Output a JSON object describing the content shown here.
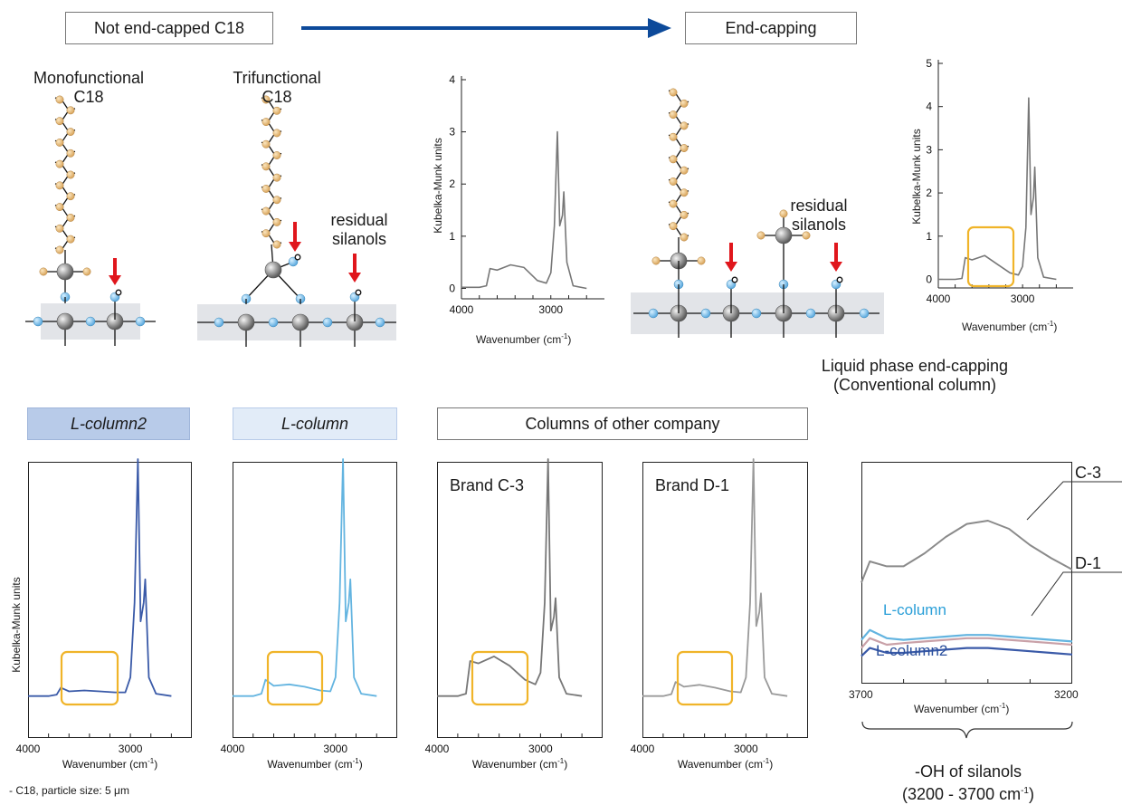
{
  "header": {
    "left_box": "Not end-capped C18",
    "right_box": "End-capping"
  },
  "molecules": {
    "mono_label_line1": "Monofunctional",
    "mono_label_line2": "C18",
    "tri_label_line1": "Trifunctional",
    "tri_label_line2": "C18",
    "residual_line1": "residual",
    "residual_line2": "silanols",
    "residual2_line1": "residual",
    "residual2_line2": "silanols"
  },
  "top_spectra": {
    "ylabel": "Kubelka-Munk units",
    "xlabel": "Wavenumber (cm",
    "xlabel_sup": "-1",
    "xlabel_close": ")",
    "liquid_line1": "Liquid phase end-capping",
    "liquid_line2": "(Conventional column)"
  },
  "bottom_headers": {
    "lc2": "L-column2",
    "lc": "L-column",
    "other": "Columns of other company"
  },
  "bottom_spectra": {
    "ylabel": "Kubelka-Munk units",
    "brand_c3": "Brand C-3",
    "brand_d1": "Brand D-1"
  },
  "zoom": {
    "c3": "C-3",
    "d1": "D-1",
    "lcolumn": "L-column",
    "lcolumn2": "L-column2",
    "tick_left": "3700",
    "tick_right": "3200",
    "xlabel": "Wavenumber (cm",
    "silanols_line1": "-OH of silanols",
    "silanols_line2": "(3200 - 3700 cm",
    "silanols_sup": "-1",
    "silanols_close": ")"
  },
  "footnote": "- C18, particle size: 5 μm",
  "colors": {
    "arrow_blue": "#0d4a9a",
    "red_arrow": "#e0161c",
    "chain_atom": "#d9a55c",
    "silicon_atom": "#8c8c8c",
    "oxygen_atom": "#5aa9de",
    "highlight_box": "#f0b429",
    "lc2_line": "#3a5aa8",
    "lc_line": "#63b4e0",
    "gray_line": "#777777"
  },
  "chart_data": [
    {
      "type": "line",
      "xlabel": "Wavenumber (cm-1)",
      "ylabel": "Kubelka-Munk units",
      "xlim": [
        4000,
        2400
      ],
      "ylim": [
        -0.2,
        4
      ],
      "x_ticks": [
        "4000",
        "3000"
      ],
      "y_ticks": [
        "0",
        "1",
        "2",
        "3",
        "4"
      ],
      "series": [
        {
          "x": [
            4000,
            3800,
            3720,
            3680,
            3600,
            3450,
            3300,
            3150,
            3050,
            3000,
            2960,
            2927,
            2900,
            2870,
            2855,
            2820,
            2750,
            2600
          ],
          "y": [
            0.02,
            0.02,
            0.05,
            0.38,
            0.35,
            0.45,
            0.4,
            0.15,
            0.1,
            0.3,
            1.2,
            3.0,
            1.2,
            1.4,
            1.85,
            0.5,
            0.05,
            0.0
          ]
        }
      ]
    },
    {
      "type": "line",
      "xlabel": "Wavenumber (cm-1)",
      "ylabel": "Kubelka-Munk units",
      "xlim": [
        4000,
        2400
      ],
      "ylim": [
        -0.2,
        5
      ],
      "x_ticks": [
        "4000",
        "3000"
      ],
      "y_ticks": [
        "0",
        "1",
        "2",
        "3",
        "4",
        "5"
      ],
      "series": [
        {
          "x": [
            4000,
            3800,
            3720,
            3680,
            3600,
            3450,
            3300,
            3150,
            3050,
            3000,
            2960,
            2927,
            2900,
            2870,
            2855,
            2820,
            2750,
            2600
          ],
          "y": [
            0.0,
            0.0,
            0.02,
            0.5,
            0.45,
            0.55,
            0.35,
            0.15,
            0.1,
            0.3,
            1.2,
            4.2,
            1.5,
            1.9,
            2.6,
            0.5,
            0.05,
            0.0
          ]
        }
      ]
    },
    {
      "type": "line",
      "name": "L-column2",
      "xlabel": "Wavenumber (cm-1)",
      "ylabel": "Kubelka-Munk units",
      "xlim": [
        4000,
        2400
      ],
      "ylim": [
        -0.2,
        5
      ],
      "x_ticks": [
        "4000",
        "3000"
      ],
      "series": [
        {
          "x": [
            4000,
            3800,
            3720,
            3680,
            3600,
            3450,
            3300,
            3150,
            3050,
            3000,
            2960,
            2927,
            2900,
            2870,
            2855,
            2820,
            2750,
            2600
          ],
          "y": [
            0.0,
            0.0,
            0.03,
            0.18,
            0.1,
            0.12,
            0.1,
            0.08,
            0.08,
            0.4,
            2.0,
            6.0,
            1.6,
            2.0,
            2.5,
            0.4,
            0.05,
            0.0
          ]
        }
      ]
    },
    {
      "type": "line",
      "name": "L-column",
      "xlabel": "Wavenumber (cm-1)",
      "ylabel": "Kubelka-Munk units",
      "xlim": [
        4000,
        2400
      ],
      "ylim": [
        -0.2,
        5
      ],
      "x_ticks": [
        "4000",
        "3000"
      ],
      "series": [
        {
          "x": [
            4000,
            3800,
            3720,
            3680,
            3600,
            3450,
            3300,
            3150,
            3050,
            3000,
            2960,
            2927,
            2900,
            2870,
            2855,
            2820,
            2750,
            2600
          ],
          "y": [
            0.0,
            0.0,
            0.05,
            0.35,
            0.22,
            0.25,
            0.2,
            0.12,
            0.1,
            0.4,
            2.0,
            6.0,
            1.6,
            2.0,
            2.5,
            0.4,
            0.05,
            0.0
          ]
        }
      ]
    },
    {
      "type": "line",
      "name": "Brand C-3",
      "xlabel": "Wavenumber (cm-1)",
      "ylabel": "Kubelka-Munk units",
      "xlim": [
        4000,
        2400
      ],
      "ylim": [
        -0.2,
        5
      ],
      "x_ticks": [
        "4000",
        "3000"
      ],
      "series": [
        {
          "x": [
            4000,
            3800,
            3720,
            3680,
            3600,
            3450,
            3300,
            3150,
            3050,
            3000,
            2960,
            2927,
            2900,
            2870,
            2855,
            2820,
            2750,
            2600
          ],
          "y": [
            0.0,
            0.0,
            0.05,
            0.75,
            0.7,
            0.85,
            0.65,
            0.35,
            0.25,
            0.5,
            2.0,
            6.0,
            1.4,
            1.7,
            2.1,
            0.4,
            0.05,
            0.0
          ]
        }
      ]
    },
    {
      "type": "line",
      "name": "Brand D-1",
      "xlabel": "Wavenumber (cm-1)",
      "ylabel": "Kubelka-Munk units",
      "xlim": [
        4000,
        2400
      ],
      "ylim": [
        -0.2,
        5
      ],
      "x_ticks": [
        "4000",
        "3000"
      ],
      "series": [
        {
          "x": [
            4000,
            3800,
            3720,
            3680,
            3600,
            3450,
            3300,
            3150,
            3050,
            3000,
            2960,
            2927,
            2900,
            2870,
            2855,
            2820,
            2750,
            2600
          ],
          "y": [
            0.0,
            0.0,
            0.04,
            0.3,
            0.2,
            0.24,
            0.18,
            0.1,
            0.08,
            0.4,
            2.0,
            6.0,
            1.5,
            1.8,
            2.2,
            0.4,
            0.05,
            0.0
          ]
        }
      ]
    },
    {
      "type": "line",
      "xlabel": "Wavenumber (cm-1)",
      "xlim": [
        3700,
        3200
      ],
      "x_ticks": [
        "3700",
        "3200"
      ],
      "series": [
        {
          "name": "C-3",
          "x": [
            3700,
            3680,
            3640,
            3600,
            3550,
            3500,
            3450,
            3400,
            3350,
            3300,
            3250,
            3200
          ],
          "y": [
            0.62,
            0.75,
            0.72,
            0.72,
            0.8,
            0.9,
            0.98,
            1.0,
            0.95,
            0.85,
            0.77,
            0.7
          ]
        },
        {
          "name": "L-column",
          "x": [
            3700,
            3680,
            3640,
            3600,
            3550,
            3500,
            3450,
            3400,
            3350,
            3300,
            3250,
            3200
          ],
          "y": [
            0.38,
            0.44,
            0.39,
            0.38,
            0.39,
            0.4,
            0.41,
            0.41,
            0.4,
            0.39,
            0.38,
            0.37
          ]
        },
        {
          "name": "D-1",
          "x": [
            3700,
            3680,
            3640,
            3600,
            3550,
            3500,
            3450,
            3400,
            3350,
            3300,
            3250,
            3200
          ],
          "y": [
            0.33,
            0.39,
            0.35,
            0.36,
            0.37,
            0.38,
            0.39,
            0.39,
            0.38,
            0.37,
            0.36,
            0.35
          ]
        },
        {
          "name": "L-column2",
          "x": [
            3700,
            3680,
            3640,
            3600,
            3550,
            3500,
            3450,
            3400,
            3350,
            3300,
            3250,
            3200
          ],
          "y": [
            0.28,
            0.33,
            0.3,
            0.3,
            0.31,
            0.32,
            0.33,
            0.33,
            0.32,
            0.31,
            0.3,
            0.29
          ]
        }
      ]
    }
  ]
}
